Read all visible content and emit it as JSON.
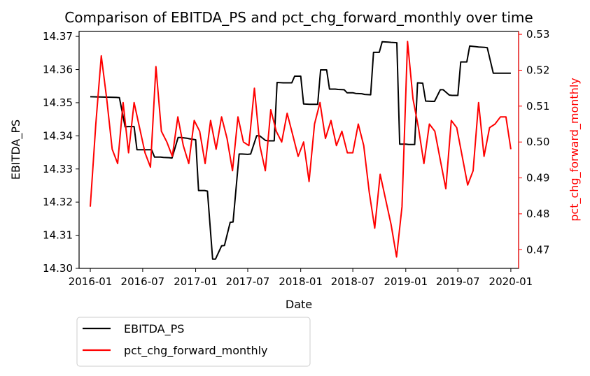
{
  "chart_data": {
    "type": "line",
    "title": "Comparison of EBITDA_PS and pct_chg_forward_monthly over time",
    "xlabel": "Date",
    "ylabel_left": "EBITDA_PS",
    "ylabel_right": "pct_chg_forward_monthly",
    "x_ticks": [
      "2016-01",
      "2016-07",
      "2017-01",
      "2017-07",
      "2018-01",
      "2018-07",
      "2019-01",
      "2019-07",
      "2020-01"
    ],
    "y_left_ticks": [
      "14.30",
      "14.31",
      "14.32",
      "14.33",
      "14.34",
      "14.35",
      "14.36",
      "14.37"
    ],
    "y_right_ticks": [
      "0.47",
      "0.48",
      "0.49",
      "0.50",
      "0.51",
      "0.52",
      "0.53"
    ],
    "xlim": [
      "2015-11-23",
      "2020-01-28"
    ],
    "ylim_left": [
      14.3,
      14.3715
    ],
    "ylim_right": [
      0.4648,
      0.5308
    ],
    "grid": false,
    "legend_position": "below-left",
    "colors": {
      "EBITDA_PS": "#000000",
      "pct_chg_forward_monthly": "#ff0000"
    },
    "series": [
      {
        "name": "EBITDA_PS",
        "axis": "left",
        "color": "#000000",
        "x": [
          "2016-01-01",
          "2016-04-01",
          "2016-04-11",
          "2016-05-01",
          "2016-05-11",
          "2016-06-01",
          "2016-06-11",
          "2016-07-01",
          "2016-07-11",
          "2016-08-01",
          "2016-08-11",
          "2016-09-01",
          "2016-09-11",
          "2016-10-01",
          "2016-10-11",
          "2016-11-01",
          "2016-11-11",
          "2016-12-01",
          "2016-12-11",
          "2017-01-01",
          "2017-01-11",
          "2017-02-01",
          "2017-02-11",
          "2017-03-01",
          "2017-03-11",
          "2017-04-01",
          "2017-04-11",
          "2017-05-01",
          "2017-05-11",
          "2017-06-01",
          "2017-06-11",
          "2017-07-01",
          "2017-07-11",
          "2017-08-01",
          "2017-08-11",
          "2017-09-01",
          "2017-09-11",
          "2017-10-01",
          "2017-10-11",
          "2017-11-01",
          "2017-11-11",
          "2017-12-01",
          "2017-12-11",
          "2018-01-01",
          "2018-01-11",
          "2018-02-01",
          "2018-02-11",
          "2018-03-01",
          "2018-03-11",
          "2018-04-01",
          "2018-04-11",
          "2018-05-01",
          "2018-05-11",
          "2018-06-01",
          "2018-06-11",
          "2018-07-01",
          "2018-07-11",
          "2018-08-01",
          "2018-08-11",
          "2018-09-01",
          "2018-09-11",
          "2018-10-01",
          "2018-10-11",
          "2018-11-01",
          "2018-11-11",
          "2018-12-01",
          "2018-12-11",
          "2019-01-01",
          "2019-01-11",
          "2019-02-01",
          "2019-02-11",
          "2019-03-01",
          "2019-03-11",
          "2019-04-01",
          "2019-04-11",
          "2019-05-01",
          "2019-05-11",
          "2019-06-01",
          "2019-06-11",
          "2019-07-01",
          "2019-07-11",
          "2019-08-01",
          "2019-08-11",
          "2019-09-01",
          "2019-09-11",
          "2019-10-01",
          "2019-10-11",
          "2019-11-01",
          "2019-11-11",
          "2019-12-01",
          "2019-12-11",
          "2020-01-01"
        ],
        "values": [
          14.3518,
          14.3516,
          14.3515,
          14.3427,
          14.3428,
          14.3428,
          14.3358,
          14.3358,
          14.3358,
          14.3358,
          14.3336,
          14.3336,
          14.3335,
          14.3334,
          14.3333,
          14.3395,
          14.3395,
          14.3393,
          14.3391,
          14.3388,
          14.3235,
          14.3235,
          14.3233,
          14.3028,
          14.3028,
          14.3068,
          14.3069,
          14.3139,
          14.314,
          14.3345,
          14.3345,
          14.3344,
          14.3345,
          14.34,
          14.34,
          14.3386,
          14.3385,
          14.3385,
          14.3561,
          14.356,
          14.356,
          14.356,
          14.358,
          14.358,
          14.3496,
          14.3495,
          14.3495,
          14.3495,
          14.3599,
          14.3599,
          14.3541,
          14.3541,
          14.354,
          14.3539,
          14.353,
          14.353,
          14.3528,
          14.3527,
          14.3525,
          14.3524,
          14.3652,
          14.3652,
          14.3684,
          14.3683,
          14.3682,
          14.3681,
          14.3375,
          14.3375,
          14.3374,
          14.3374,
          14.356,
          14.3559,
          14.3505,
          14.3504,
          14.3504,
          14.3539,
          14.3539,
          14.3523,
          14.3522,
          14.3522,
          14.3623,
          14.3623,
          14.3671,
          14.3669,
          14.3668,
          14.3667,
          14.3666,
          14.3589,
          14.3589,
          14.3589,
          14.3589,
          14.3589
        ]
      },
      {
        "name": "pct_chg_forward_monthly",
        "axis": "right",
        "color": "#ff0000",
        "x": [
          "2016-01-01",
          "2016-01-20",
          "2016-02-08",
          "2016-02-27",
          "2016-03-17",
          "2016-04-05",
          "2016-04-24",
          "2016-05-13",
          "2016-06-01",
          "2016-06-20",
          "2016-07-09",
          "2016-07-28",
          "2016-08-16",
          "2016-09-04",
          "2016-09-23",
          "2016-10-12",
          "2016-10-31",
          "2016-11-19",
          "2016-12-08",
          "2016-12-27",
          "2017-01-15",
          "2017-02-03",
          "2017-02-22",
          "2017-03-13",
          "2017-04-01",
          "2017-04-20",
          "2017-05-09",
          "2017-05-28",
          "2017-06-16",
          "2017-07-05",
          "2017-07-24",
          "2017-08-12",
          "2017-08-31",
          "2017-09-19",
          "2017-10-08",
          "2017-10-27",
          "2017-11-15",
          "2017-12-04",
          "2017-12-23",
          "2018-01-11",
          "2018-01-30",
          "2018-02-18",
          "2018-03-09",
          "2018-03-28",
          "2018-04-16",
          "2018-05-05",
          "2018-05-24",
          "2018-06-12",
          "2018-07-01",
          "2018-07-20",
          "2018-08-08",
          "2018-08-27",
          "2018-09-15",
          "2018-10-04",
          "2018-10-23",
          "2018-11-11",
          "2018-11-30",
          "2018-12-19",
          "2019-01-07",
          "2019-01-26",
          "2019-02-14",
          "2019-03-05",
          "2019-03-24",
          "2019-04-12",
          "2019-05-01",
          "2019-05-20",
          "2019-06-08",
          "2019-06-27",
          "2019-07-16",
          "2019-08-04",
          "2019-08-23",
          "2019-09-11",
          "2019-09-30",
          "2019-10-19",
          "2019-11-07",
          "2019-11-26",
          "2019-12-15",
          "2020-01-01"
        ],
        "values": [
          0.482,
          0.505,
          0.524,
          0.512,
          0.498,
          0.494,
          0.511,
          0.497,
          0.511,
          0.504,
          0.497,
          0.493,
          0.521,
          0.503,
          0.5,
          0.496,
          0.507,
          0.499,
          0.494,
          0.506,
          0.503,
          0.494,
          0.506,
          0.498,
          0.507,
          0.501,
          0.492,
          0.507,
          0.5,
          0.499,
          0.515,
          0.499,
          0.492,
          0.509,
          0.503,
          0.5,
          0.508,
          0.502,
          0.496,
          0.5,
          0.489,
          0.505,
          0.511,
          0.501,
          0.506,
          0.499,
          0.503,
          0.497,
          0.497,
          0.505,
          0.499,
          0.486,
          0.476,
          0.491,
          0.484,
          0.477,
          0.468,
          0.482,
          0.528,
          0.512,
          0.504,
          0.494,
          0.505,
          0.503,
          0.495,
          0.487,
          0.506,
          0.504,
          0.496,
          0.488,
          0.492,
          0.511,
          0.496,
          0.504,
          0.505,
          0.507,
          0.507,
          0.498
        ]
      }
    ]
  }
}
